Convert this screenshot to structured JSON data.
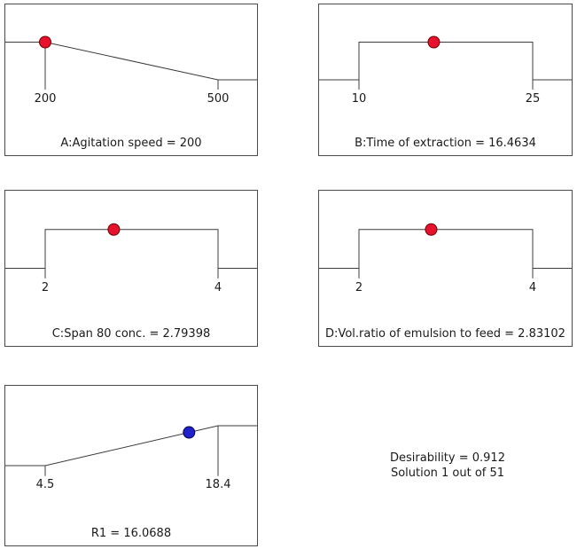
{
  "chart_data": [
    {
      "type": "ramp",
      "factor": "A:Agitation speed",
      "caption": "A:Agitation speed = 200",
      "low": 200,
      "high": 500,
      "value": 200,
      "low_label": "200",
      "high_label": "500",
      "shape": "descend",
      "dot_fraction": 0.0,
      "dot_color": "#e8112d",
      "dot_stroke": "#6b0000"
    },
    {
      "type": "ramp",
      "factor": "B:Time of extraction",
      "caption": "B:Time of extraction = 16.4634",
      "low": 10,
      "high": 25,
      "value": 16.4634,
      "low_label": "10",
      "high_label": "25",
      "shape": "plateau",
      "dot_fraction": 0.4309,
      "dot_color": "#e8112d",
      "dot_stroke": "#6b0000"
    },
    {
      "type": "ramp",
      "factor": "C:Span 80 conc.",
      "caption": "C:Span 80 conc. = 2.79398",
      "low": 2,
      "high": 4,
      "value": 2.79398,
      "low_label": "2",
      "high_label": "4",
      "shape": "plateau",
      "dot_fraction": 0.397,
      "dot_color": "#e8112d",
      "dot_stroke": "#6b0000"
    },
    {
      "type": "ramp",
      "factor": "D:Vol.ratio of emulsion to feed",
      "caption": "D:Vol.ratio of emulsion to feed = 2.83102",
      "low": 2,
      "high": 4,
      "value": 2.83102,
      "low_label": "2",
      "high_label": "4",
      "shape": "plateau",
      "dot_fraction": 0.4155,
      "dot_color": "#e8112d",
      "dot_stroke": "#6b0000"
    },
    {
      "type": "ramp",
      "factor": "R1",
      "caption": "R1 = 16.0688",
      "low": 4.5,
      "high": 18.4,
      "value": 16.0688,
      "low_label": "4.5",
      "high_label": "18.4",
      "shape": "ascend",
      "dot_fraction": 0.8323,
      "dot_color": "#2121cc",
      "dot_stroke": "#00004d"
    }
  ],
  "summary": {
    "desirability": "Desirability = 0.912",
    "solution": "Solution 1 out of 51"
  },
  "style": {
    "line_color": "#3c3c3c"
  }
}
